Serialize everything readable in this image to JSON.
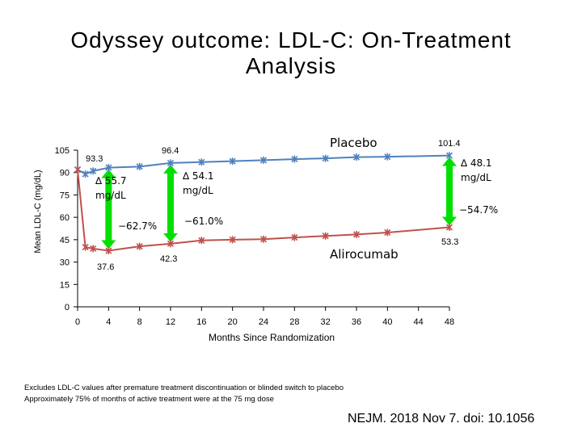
{
  "slide": {
    "title_line1": "Odyssey outcome: LDL-C: On-Treatment",
    "title_line2": "Analysis",
    "footnote_line1": "Excludes LDL-C values after premature treatment discontinuation or blinded switch to placebo",
    "footnote_line2": "Approximately 75% of months of active treatment were at the 75 mg dose",
    "citation": "NEJM. 2018 Nov 7. doi: 10.1056"
  },
  "chart_data": {
    "type": "line",
    "xlabel": "Months Since Randomization",
    "ylabel": "Mean LDL-C (mg/dL)",
    "xlim": [
      0,
      48
    ],
    "ylim": [
      0,
      105
    ],
    "x_ticks": [
      0,
      4,
      8,
      12,
      16,
      20,
      24,
      28,
      32,
      36,
      40,
      44,
      48
    ],
    "y_ticks": [
      0,
      15,
      30,
      45,
      60,
      75,
      90,
      105
    ],
    "series": [
      {
        "name": "Placebo",
        "color": "#4f81bd",
        "marker": "star",
        "points": [
          [
            0,
            92
          ],
          [
            1,
            89
          ],
          [
            2,
            91
          ],
          [
            4,
            93.3
          ],
          [
            8,
            94
          ],
          [
            12,
            96.4
          ],
          [
            16,
            97
          ],
          [
            20,
            97.6
          ],
          [
            24,
            98.3
          ],
          [
            28,
            99
          ],
          [
            32,
            99.5
          ],
          [
            36,
            100.3
          ],
          [
            40,
            100.6
          ],
          [
            48,
            101.4
          ]
        ]
      },
      {
        "name": "Alirocumab",
        "color": "#c0504d",
        "marker": "star",
        "points": [
          [
            0,
            92
          ],
          [
            1,
            40
          ],
          [
            2,
            39
          ],
          [
            4,
            37.6
          ],
          [
            8,
            40.5
          ],
          [
            12,
            42.3
          ],
          [
            16,
            44.5
          ],
          [
            20,
            45
          ],
          [
            24,
            45.3
          ],
          [
            28,
            46.5
          ],
          [
            32,
            47.5
          ],
          [
            36,
            48.5
          ],
          [
            40,
            49.8
          ],
          [
            48,
            53.3
          ]
        ]
      }
    ],
    "value_labels": [
      "93.3",
      "96.4",
      "101.4",
      "37.6",
      "42.3",
      "53.3"
    ],
    "annotations": [
      {
        "line1": "∆ 55.7",
        "line2": "mg/dL",
        "pct": "−62.7%"
      },
      {
        "line1": "∆ 54.1",
        "line2": "mg/dL",
        "pct": "−61.0%"
      },
      {
        "line1": "∆ 48.1",
        "line2": "mg/dL",
        "pct": "−54.7%"
      }
    ]
  }
}
